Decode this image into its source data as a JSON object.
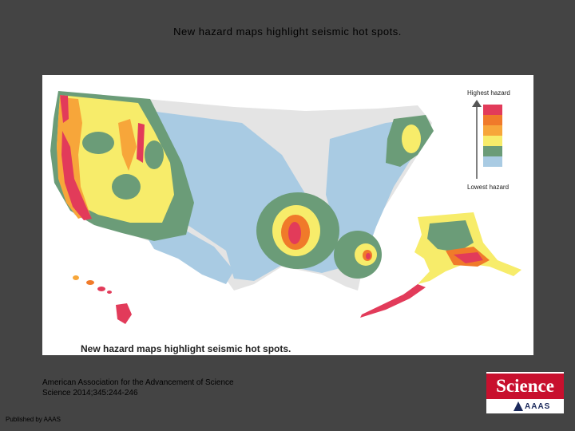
{
  "slide": {
    "title": "New hazard maps highlight seismic hot spots."
  },
  "figure": {
    "caption": "New hazard maps highlight seismic hot spots.",
    "legend": {
      "high_label": "Highest hazard",
      "low_label": "Lowest hazard",
      "levels": [
        "#e23b5a",
        "#f07a2a",
        "#f7a63a",
        "#f7ec6a",
        "#6b9c78",
        "#a9cbe3"
      ]
    },
    "colors": {
      "lowest": "#e4e4e4",
      "low": "#a9cbe3",
      "moderate": "#6b9c78",
      "elevated": "#f7ec6a",
      "high": "#f7a63a",
      "very_high": "#f07a2a",
      "highest": "#e23b5a"
    }
  },
  "citation": {
    "line1": "American Association for the Advancement of Science",
    "line2": "Science 2014;345:244-246"
  },
  "footer": {
    "published": "Published by AAAS"
  },
  "logo": {
    "science": "Science",
    "aaas": "AAAS"
  }
}
